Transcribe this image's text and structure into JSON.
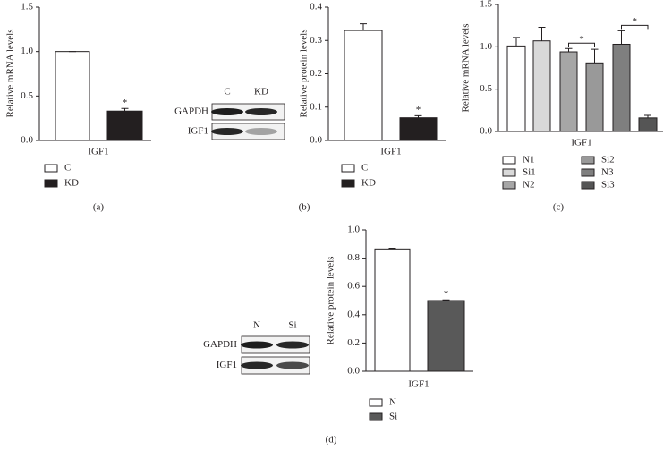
{
  "chart_data": [
    {
      "type": "bar",
      "panel": "(a)",
      "ylabel": "Relative mRNA levels",
      "categories": [
        "IGF1"
      ],
      "series": [
        {
          "name": "C",
          "color": "#ffffff",
          "values": [
            1.0
          ],
          "errors": [
            0
          ]
        },
        {
          "name": "KD",
          "color": "#231f20",
          "values": [
            0.33
          ],
          "errors": [
            0.03
          ]
        }
      ],
      "ylim": [
        0,
        1.5
      ],
      "yticks": [
        {
          "value": 0,
          "label": "0.0"
        },
        {
          "value": 0.5,
          "label": "0.5"
        },
        {
          "value": 1,
          "label": "1.0"
        },
        {
          "value": 1.5,
          "label": "1.5"
        }
      ],
      "annotations": [
        {
          "text": "*",
          "series": 1
        }
      ]
    },
    {
      "type": "bar",
      "panel": "(b)",
      "ylabel": "Relative protein levels",
      "categories": [
        "IGF1"
      ],
      "series": [
        {
          "name": "C",
          "color": "#ffffff",
          "values": [
            0.33
          ],
          "errors": [
            0.02
          ]
        },
        {
          "name": "KD",
          "color": "#231f20",
          "values": [
            0.068
          ],
          "errors": [
            0.006
          ]
        }
      ],
      "ylim": [
        0,
        0.4
      ],
      "yticks": [
        {
          "value": 0,
          "label": "0.0"
        },
        0.1,
        0.2,
        0.3,
        0.4
      ],
      "annotations": [
        {
          "text": "*",
          "series": 1
        }
      ]
    },
    {
      "type": "bar",
      "panel": "(c)",
      "ylabel": "Relative mRNA levels",
      "categories": [
        "IGF1"
      ],
      "series": [
        {
          "name": "N1",
          "color": "#ffffff",
          "values": [
            1.01
          ],
          "errors": [
            0.1
          ]
        },
        {
          "name": "Si1",
          "color": "#d9d9d9",
          "values": [
            1.07
          ],
          "errors": [
            0.16
          ]
        },
        {
          "name": "N2",
          "color": "#a6a6a6",
          "values": [
            0.94
          ],
          "errors": [
            0.04
          ]
        },
        {
          "name": "Si2",
          "color": "#999999",
          "values": [
            0.81
          ],
          "errors": [
            0.16
          ]
        },
        {
          "name": "N3",
          "color": "#7f7f7f",
          "values": [
            1.03
          ],
          "errors": [
            0.16
          ]
        },
        {
          "name": "Si3",
          "color": "#555555",
          "values": [
            0.16
          ],
          "errors": [
            0.03
          ]
        }
      ],
      "ylim": [
        0,
        1.5
      ],
      "yticks": [
        {
          "value": 0,
          "label": "0.0"
        },
        {
          "value": 0.5,
          "label": "0.5"
        },
        {
          "value": 1,
          "label": "1.0"
        },
        {
          "value": 1.5,
          "label": "1.5"
        }
      ],
      "annotations": [
        {
          "text": "*",
          "series": [
            2,
            3
          ]
        },
        {
          "text": "*",
          "series": [
            4,
            5
          ]
        }
      ]
    },
    {
      "type": "bar",
      "panel": "(d)",
      "ylabel": "Relative protein levels",
      "categories": [
        "IGF1"
      ],
      "series": [
        {
          "name": "N",
          "color": "#ffffff",
          "values": [
            0.865
          ],
          "errors": [
            0.005
          ]
        },
        {
          "name": "Si",
          "color": "#595959",
          "values": [
            0.5
          ],
          "errors": [
            0.005
          ]
        }
      ],
      "ylim": [
        0,
        1.0
      ],
      "yticks": [
        {
          "value": 0,
          "label": "0.0"
        },
        0.2,
        0.4,
        0.6,
        0.8,
        {
          "value": 1,
          "label": "1.0"
        }
      ],
      "annotations": [
        {
          "text": "*",
          "series": 1
        }
      ]
    }
  ],
  "blots": [
    {
      "lanes": [
        "C",
        "KD"
      ],
      "rows": [
        "GAPDH",
        "IGF1"
      ]
    },
    {
      "lanes": [
        "N",
        "Si"
      ],
      "rows": [
        "GAPDH",
        "IGF1"
      ]
    }
  ]
}
